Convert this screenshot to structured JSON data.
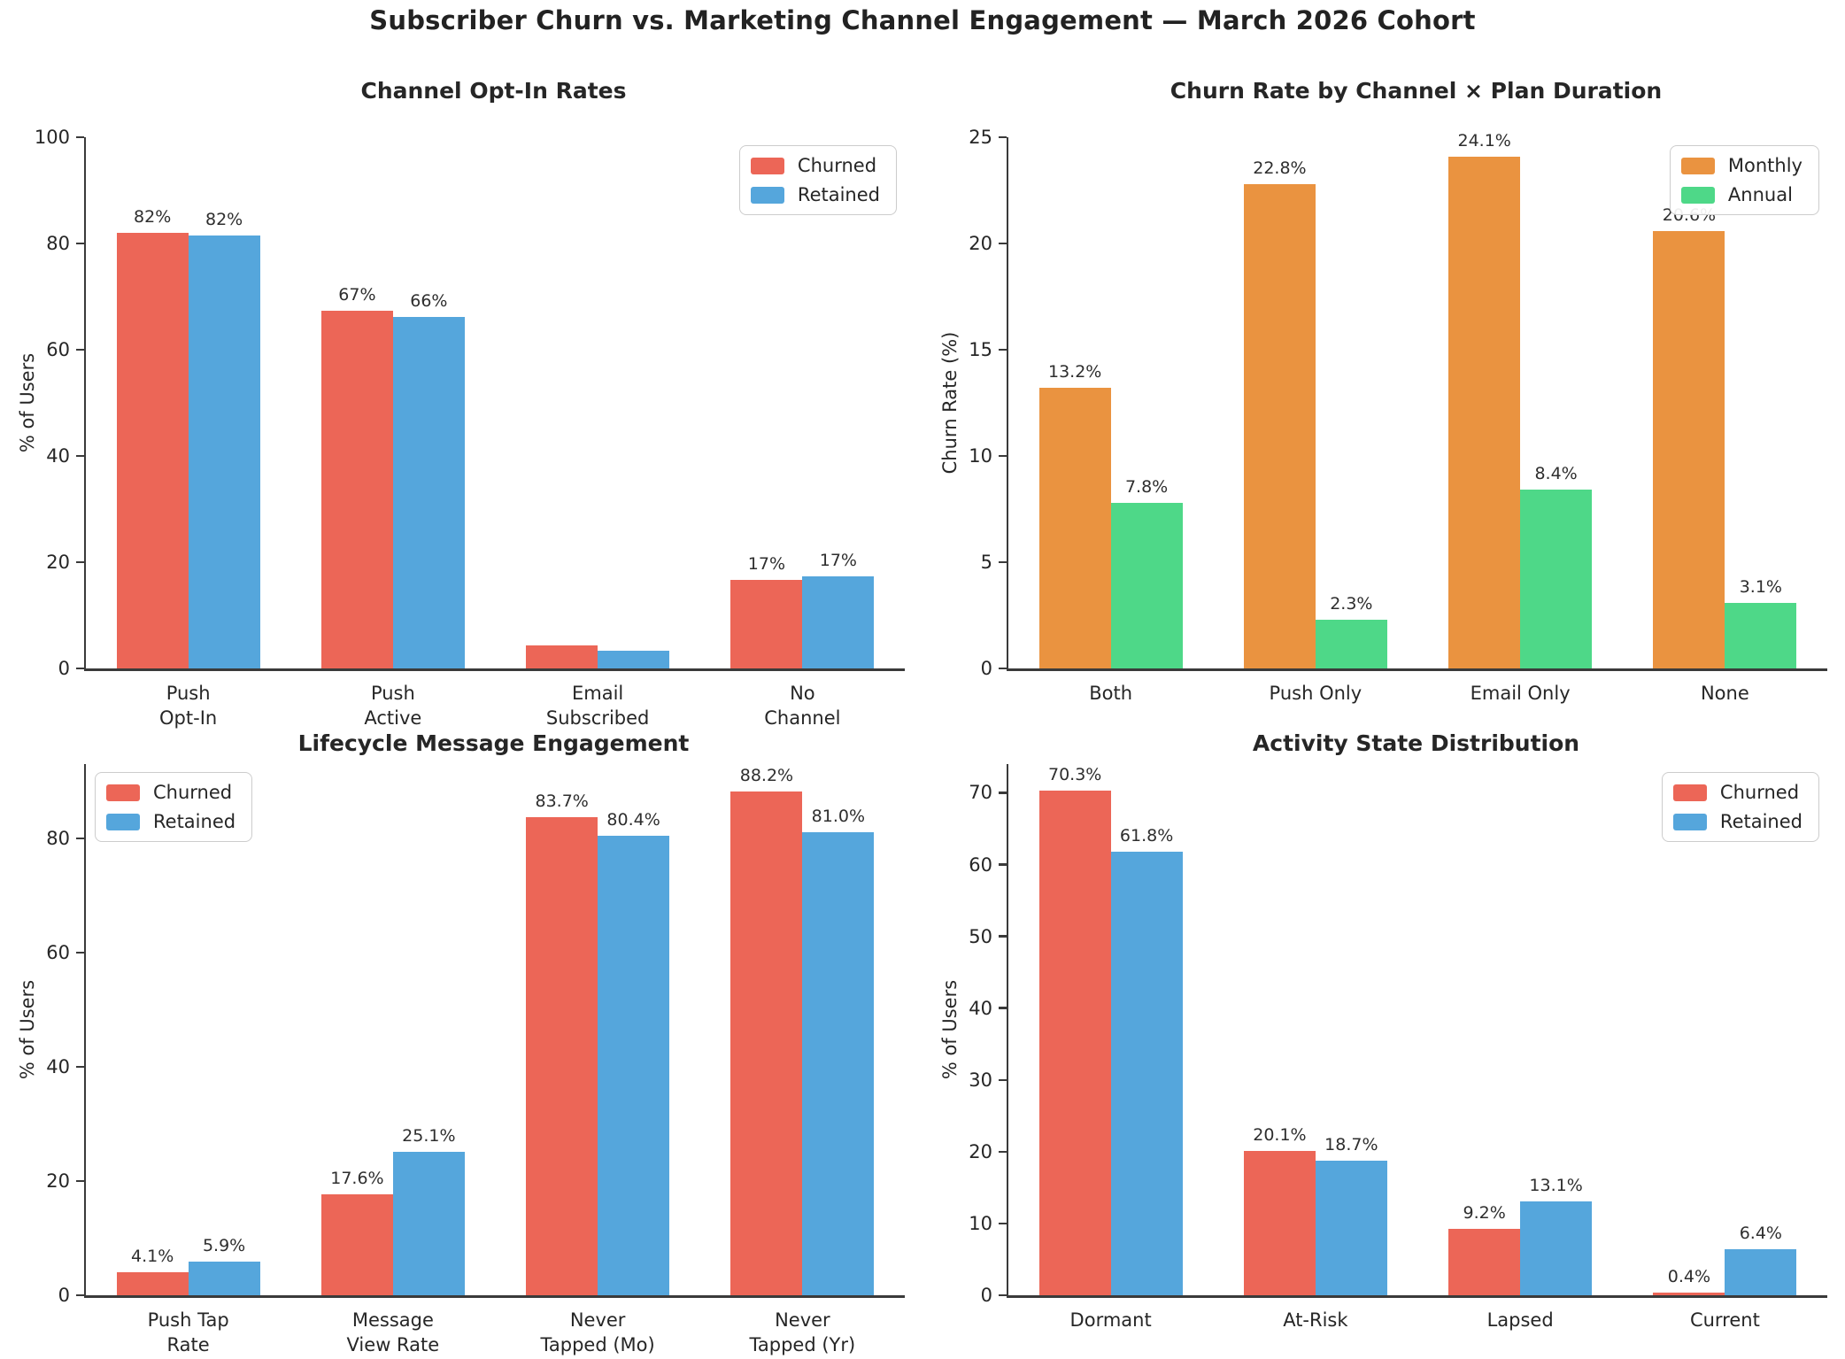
{
  "figure_title": "Subscriber Churn vs. Marketing Channel Engagement — March 2026 Cohort",
  "colors": {
    "churned": "#EC6657",
    "retained": "#55A6DC",
    "monthly": "#EA9340",
    "annual": "#4ED888",
    "spine": "#3a3a3a",
    "text": "#262626"
  },
  "chart_data": [
    {
      "type": "bar",
      "title": "Channel Opt-In Rates",
      "ylabel": "% of Users",
      "ylim": [
        0,
        100
      ],
      "yticks": [
        0,
        20,
        40,
        60,
        80,
        100
      ],
      "grid": false,
      "legend_position": "upper-right",
      "categories": [
        "Push\nOpt-In",
        "Push\nActive",
        "Email\nSubscribed",
        "No\nChannel"
      ],
      "series": [
        {
          "name": "Churned",
          "color_key": "churned",
          "values": [
            82.0,
            67.3,
            4.3,
            16.6
          ],
          "labels": [
            "82%",
            "67%",
            "",
            "17%"
          ]
        },
        {
          "name": "Retained",
          "color_key": "retained",
          "values": [
            81.5,
            66.1,
            3.4,
            17.3
          ],
          "labels": [
            "82%",
            "66%",
            "",
            "17%"
          ]
        }
      ]
    },
    {
      "type": "bar",
      "title": "Churn Rate by Channel × Plan Duration",
      "ylabel": "Churn Rate (%)",
      "ylim": [
        0,
        25
      ],
      "yticks": [
        0,
        5,
        10,
        15,
        20,
        25
      ],
      "grid": false,
      "legend_position": "upper-right",
      "categories": [
        "Both",
        "Push Only",
        "Email Only",
        "None"
      ],
      "series": [
        {
          "name": "Monthly",
          "color_key": "monthly",
          "values": [
            13.2,
            22.8,
            24.1,
            20.6
          ],
          "labels": [
            "13.2%",
            "22.8%",
            "24.1%",
            "20.6%"
          ]
        },
        {
          "name": "Annual",
          "color_key": "annual",
          "values": [
            7.8,
            2.3,
            8.4,
            3.1
          ],
          "labels": [
            "7.8%",
            "2.3%",
            "8.4%",
            "3.1%"
          ]
        }
      ]
    },
    {
      "type": "bar",
      "title": "Lifecycle Message Engagement",
      "ylabel": "% of Users",
      "ylim": [
        0,
        93
      ],
      "yticks": [
        0,
        20,
        40,
        60,
        80
      ],
      "grid": false,
      "legend_position": "upper-left",
      "categories": [
        "Push Tap\nRate",
        "Message\nView Rate",
        "Never\nTapped (Mo)",
        "Never\nTapped (Yr)"
      ],
      "series": [
        {
          "name": "Churned",
          "color_key": "churned",
          "values": [
            4.1,
            17.6,
            83.7,
            88.2
          ],
          "labels": [
            "4.1%",
            "17.6%",
            "83.7%",
            "88.2%"
          ]
        },
        {
          "name": "Retained",
          "color_key": "retained",
          "values": [
            5.9,
            25.1,
            80.4,
            81.0
          ],
          "labels": [
            "5.9%",
            "25.1%",
            "80.4%",
            "81.0%"
          ]
        }
      ]
    },
    {
      "type": "bar",
      "title": "Activity State Distribution",
      "ylabel": "% of Users",
      "ylim": [
        0,
        74
      ],
      "yticks": [
        0,
        10,
        20,
        30,
        40,
        50,
        60,
        70
      ],
      "grid": false,
      "legend_position": "upper-right",
      "categories": [
        "Dormant",
        "At-Risk",
        "Lapsed",
        "Current"
      ],
      "series": [
        {
          "name": "Churned",
          "color_key": "churned",
          "values": [
            70.3,
            20.1,
            9.2,
            0.4
          ],
          "labels": [
            "70.3%",
            "20.1%",
            "9.2%",
            "0.4%"
          ]
        },
        {
          "name": "Retained",
          "color_key": "retained",
          "values": [
            61.8,
            18.7,
            13.1,
            6.4
          ],
          "labels": [
            "61.8%",
            "18.7%",
            "13.1%",
            "6.4%"
          ]
        }
      ]
    }
  ]
}
